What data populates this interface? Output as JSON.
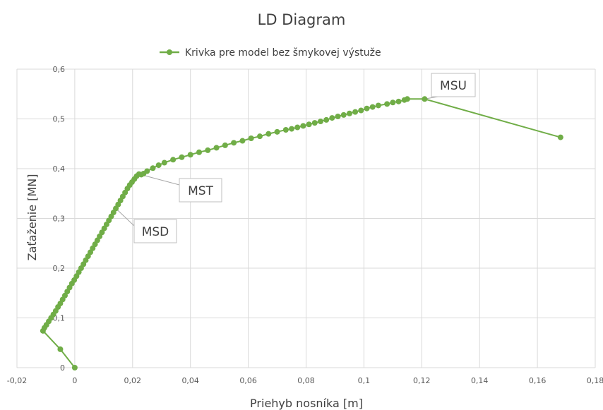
{
  "chart_data": {
    "type": "scatter",
    "title": "LD Diagram",
    "xlabel": "Priehyb nosníka [m]",
    "ylabel": "Zaťaženie [MN]",
    "xlim": [
      -0.02,
      0.18
    ],
    "ylim": [
      0,
      0.6
    ],
    "x_ticks": [
      "-0,02",
      "0",
      "0,02",
      "0,04",
      "0,06",
      "0,08",
      "0,1",
      "0,12",
      "0,14",
      "0,16",
      "0,18"
    ],
    "y_ticks": [
      "0",
      "0,1",
      "0,2",
      "0,3",
      "0,4",
      "0,5",
      "0,6"
    ],
    "grid": true,
    "legend_position": "top",
    "series": [
      {
        "name": "Krivka pre model bez šmykovej výstuže",
        "color": "#70ad47",
        "x": [
          0,
          -0.005,
          -0.011,
          -0.0105,
          -0.0098,
          -0.009,
          -0.0082,
          -0.0074,
          -0.0066,
          -0.0058,
          -0.005,
          -0.0042,
          -0.0034,
          -0.0026,
          -0.0018,
          -0.001,
          -0.0002,
          0.0006,
          0.0014,
          0.0022,
          0.003,
          0.0038,
          0.0046,
          0.0054,
          0.0062,
          0.007,
          0.0078,
          0.0086,
          0.0094,
          0.0102,
          0.011,
          0.0118,
          0.0126,
          0.0134,
          0.0142,
          0.015,
          0.0158,
          0.0166,
          0.0174,
          0.0182,
          0.019,
          0.0198,
          0.0206,
          0.0214,
          0.0222,
          0.023,
          0.0238,
          0.025,
          0.027,
          0.029,
          0.031,
          0.034,
          0.037,
          0.04,
          0.043,
          0.046,
          0.049,
          0.052,
          0.055,
          0.058,
          0.061,
          0.064,
          0.067,
          0.07,
          0.073,
          0.075,
          0.077,
          0.079,
          0.081,
          0.083,
          0.085,
          0.087,
          0.089,
          0.091,
          0.093,
          0.095,
          0.097,
          0.099,
          0.101,
          0.103,
          0.105,
          0.108,
          0.11,
          0.112,
          0.114,
          0.115,
          0.121,
          0.168
        ],
        "y": [
          0,
          0.037,
          0.074,
          0.08,
          0.086,
          0.093,
          0.1,
          0.107,
          0.114,
          0.122,
          0.129,
          0.137,
          0.145,
          0.153,
          0.161,
          0.169,
          0.176,
          0.184,
          0.192,
          0.2,
          0.208,
          0.216,
          0.224,
          0.232,
          0.24,
          0.248,
          0.256,
          0.264,
          0.272,
          0.28,
          0.288,
          0.296,
          0.304,
          0.312,
          0.32,
          0.328,
          0.336,
          0.344,
          0.352,
          0.36,
          0.367,
          0.373,
          0.379,
          0.385,
          0.389,
          0.388,
          0.39,
          0.395,
          0.401,
          0.407,
          0.412,
          0.418,
          0.423,
          0.428,
          0.433,
          0.437,
          0.442,
          0.447,
          0.452,
          0.456,
          0.461,
          0.465,
          0.47,
          0.474,
          0.478,
          0.48,
          0.483,
          0.486,
          0.489,
          0.492,
          0.495,
          0.498,
          0.502,
          0.505,
          0.508,
          0.511,
          0.514,
          0.517,
          0.521,
          0.524,
          0.527,
          0.53,
          0.533,
          0.535,
          0.538,
          0.54,
          0.54,
          0.463
        ]
      }
    ],
    "annotations": [
      {
        "label": "MSD",
        "x": 0.0142,
        "y": 0.32
      },
      {
        "label": "MST",
        "x": 0.0222,
        "y": 0.389
      },
      {
        "label": "MSU",
        "x": 0.121,
        "y": 0.54
      }
    ]
  }
}
